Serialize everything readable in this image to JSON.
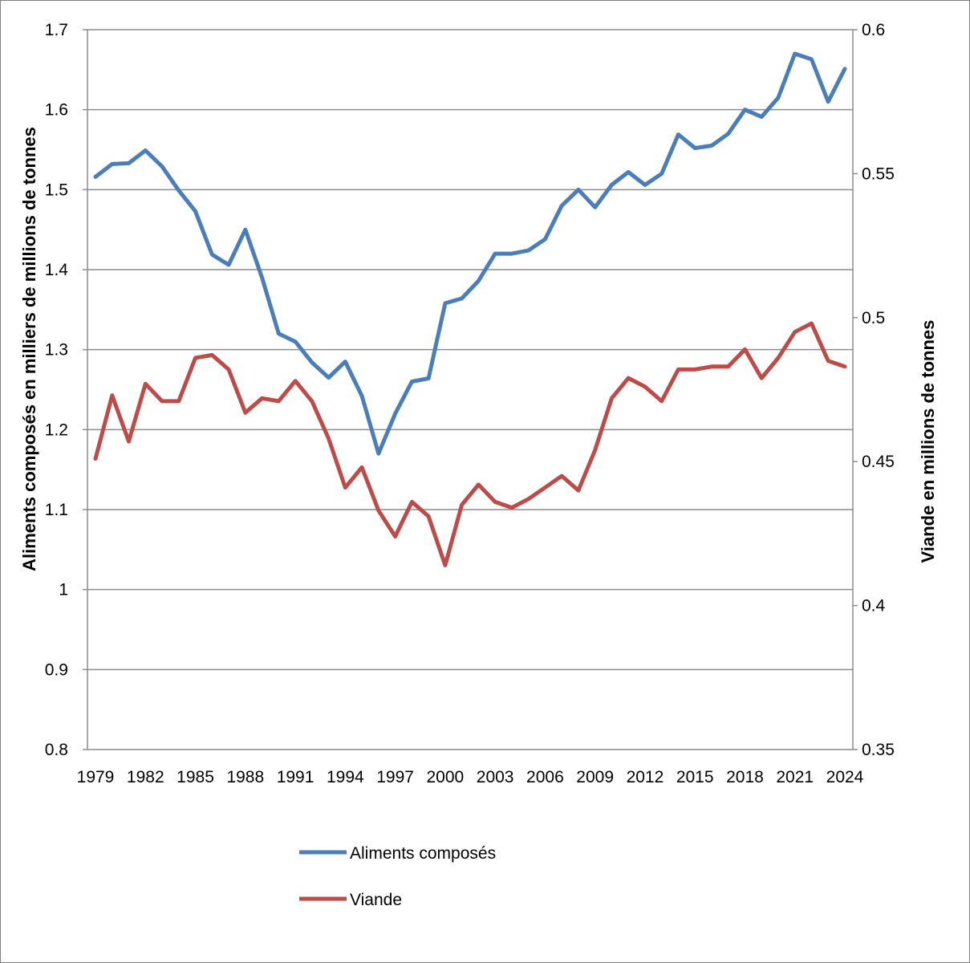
{
  "chart_data": {
    "type": "line",
    "x_ticks": [
      "1979",
      "1982",
      "1985",
      "1988",
      "1991",
      "1994",
      "1997",
      "2000",
      "2003",
      "2006",
      "2009",
      "2012",
      "2015",
      "2018",
      "2021",
      "2024"
    ],
    "y_left": {
      "label": "Aliments composés en milliers de millions de tonnes",
      "range": [
        0.8,
        1.7
      ],
      "ticks": [
        "0.8",
        "0.9",
        "1",
        "1.1",
        "1.2",
        "1.3",
        "1.4",
        "1.5",
        "1.6",
        "1.7"
      ]
    },
    "y_right": {
      "label": "Viande en millions de tonnes",
      "range": [
        0.35,
        0.6
      ],
      "ticks": [
        "0.35",
        "0.4",
        "0.45",
        "0.5",
        "0.55",
        "0.6"
      ]
    },
    "grid": "horizontal",
    "legend_position": "bottom",
    "x": [
      1979,
      1980,
      1981,
      1982,
      1983,
      1984,
      1985,
      1986,
      1987,
      1988,
      1989,
      1990,
      1991,
      1992,
      1993,
      1994,
      1995,
      1996,
      1997,
      1998,
      1999,
      2000,
      2001,
      2002,
      2003,
      2004,
      2005,
      2006,
      2007,
      2008,
      2009,
      2010,
      2011,
      2012,
      2013,
      2014,
      2015,
      2016,
      2017,
      2018,
      2019,
      2020,
      2021,
      2022,
      2023,
      2024
    ],
    "series": [
      {
        "name": "Aliments composés",
        "axis": "left",
        "color": "#4a7ebb",
        "values": [
          1.516,
          1.532,
          1.533,
          1.549,
          1.529,
          1.499,
          1.473,
          1.419,
          1.406,
          1.45,
          1.39,
          1.32,
          1.31,
          1.284,
          1.265,
          1.285,
          1.242,
          1.17,
          1.22,
          1.26,
          1.264,
          1.358,
          1.364,
          1.386,
          1.42,
          1.42,
          1.424,
          1.438,
          1.48,
          1.5,
          1.478,
          1.506,
          1.522,
          1.506,
          1.52,
          1.569,
          1.552,
          1.555,
          1.57,
          1.6,
          1.591,
          1.615,
          1.67,
          1.663,
          1.61,
          1.651
        ]
      },
      {
        "name": "Viande",
        "axis": "right",
        "color": "#be4b48",
        "values": [
          0.451,
          0.473,
          0.457,
          0.477,
          0.471,
          0.471,
          0.486,
          0.487,
          0.482,
          0.467,
          0.472,
          0.471,
          0.478,
          0.471,
          0.458,
          0.441,
          0.448,
          0.433,
          0.424,
          0.436,
          0.431,
          0.414,
          0.435,
          0.442,
          0.436,
          0.434,
          0.437,
          0.441,
          0.445,
          0.44,
          0.454,
          0.472,
          0.479,
          0.476,
          0.471,
          0.482,
          0.482,
          0.483,
          0.483,
          0.489,
          0.479,
          0.486,
          0.495,
          0.498,
          0.485,
          0.483
        ]
      }
    ]
  }
}
